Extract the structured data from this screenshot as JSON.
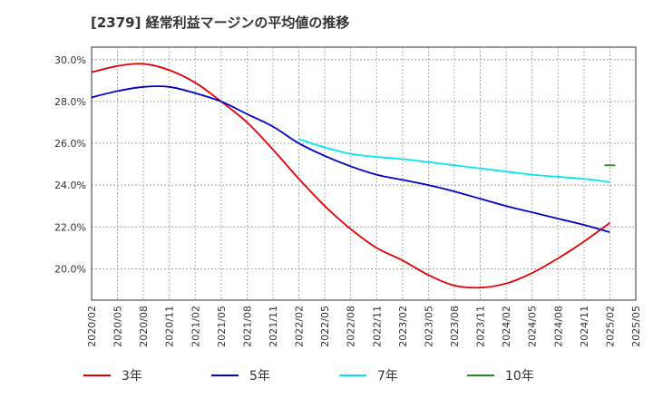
{
  "chart_data": {
    "type": "line",
    "title": "[2379]  経常利益マージンの平均値の推移",
    "xlabel": "",
    "ylabel": "",
    "y_tick_labels": [
      "20.0%",
      "22.0%",
      "24.0%",
      "26.0%",
      "28.0%",
      "30.0%"
    ],
    "y_tick_values": [
      20,
      22,
      24,
      26,
      28,
      30
    ],
    "ylim": [
      18.5,
      30.6
    ],
    "x_tick_labels": [
      "2020/02",
      "2020/05",
      "2020/08",
      "2020/11",
      "2021/02",
      "2021/05",
      "2021/08",
      "2021/11",
      "2022/02",
      "2022/05",
      "2022/08",
      "2022/11",
      "2023/02",
      "2023/05",
      "2023/08",
      "2023/11",
      "2024/02",
      "2024/05",
      "2024/08",
      "2024/11",
      "2025/02",
      "2025/05"
    ],
    "grid": true,
    "legend_position": "bottom",
    "series": [
      {
        "name": "3年",
        "color": "#e00000",
        "x": [
          "2020/02",
          "2020/05",
          "2020/08",
          "2020/11",
          "2021/02",
          "2021/05",
          "2021/08",
          "2021/11",
          "2022/02",
          "2022/05",
          "2022/08",
          "2022/11",
          "2023/02",
          "2023/05",
          "2023/08",
          "2023/11",
          "2024/02",
          "2024/05",
          "2024/08",
          "2024/11",
          "2025/02"
        ],
        "values": [
          29.4,
          29.7,
          29.8,
          29.5,
          28.9,
          28.0,
          27.0,
          25.7,
          24.3,
          23.0,
          21.9,
          21.0,
          20.4,
          19.7,
          19.2,
          19.1,
          19.3,
          19.8,
          20.5,
          21.3,
          22.2
        ]
      },
      {
        "name": "5年",
        "color": "#0000c0",
        "x": [
          "2020/02",
          "2020/05",
          "2020/08",
          "2020/11",
          "2021/02",
          "2021/05",
          "2021/08",
          "2021/11",
          "2022/02",
          "2022/05",
          "2022/08",
          "2022/11",
          "2023/02",
          "2023/05",
          "2023/08",
          "2023/11",
          "2024/02",
          "2024/05",
          "2024/08",
          "2024/11",
          "2025/02"
        ],
        "values": [
          28.2,
          28.5,
          28.7,
          28.7,
          28.4,
          28.0,
          27.4,
          26.8,
          26.0,
          25.4,
          24.9,
          24.5,
          24.25,
          24.0,
          23.7,
          23.35,
          23.0,
          22.7,
          22.4,
          22.1,
          21.75
        ]
      },
      {
        "name": "7年",
        "color": "#00e5f0",
        "x": [
          "2022/02",
          "2022/05",
          "2022/08",
          "2022/11",
          "2023/02",
          "2023/05",
          "2023/08",
          "2023/11",
          "2024/02",
          "2024/05",
          "2024/08",
          "2024/11",
          "2025/02"
        ],
        "values": [
          26.2,
          25.8,
          25.5,
          25.35,
          25.25,
          25.1,
          24.95,
          24.8,
          24.65,
          24.5,
          24.4,
          24.3,
          24.15
        ]
      },
      {
        "name": "10年",
        "color": "#228b22",
        "x": [
          "2025/02"
        ],
        "values": [
          24.95
        ]
      }
    ]
  }
}
